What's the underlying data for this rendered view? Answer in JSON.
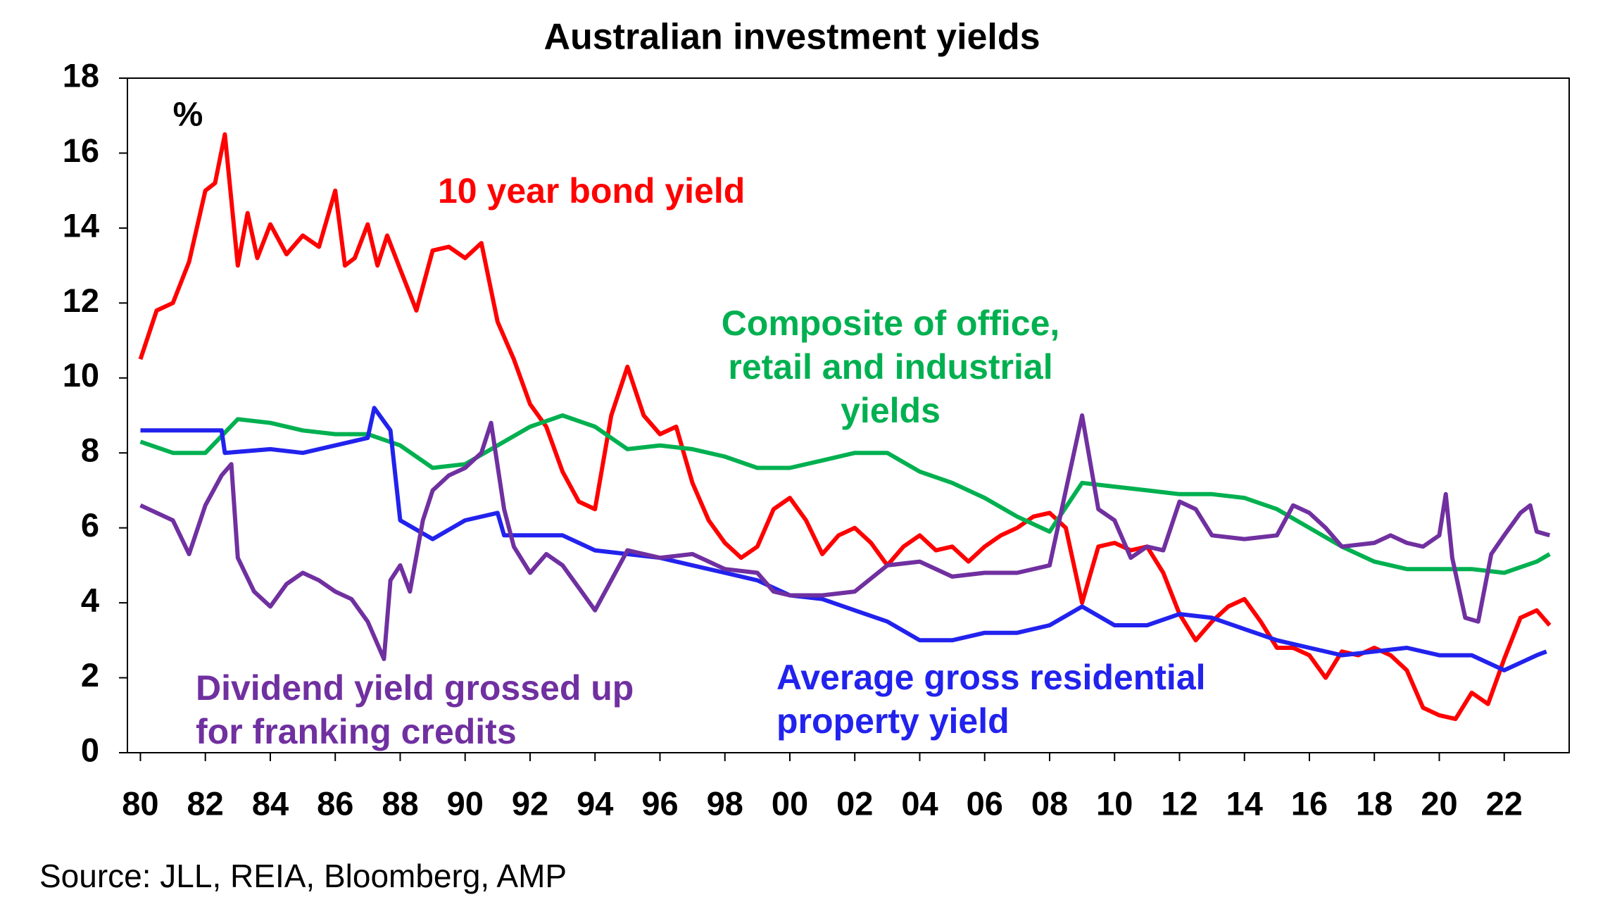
{
  "chart_data": {
    "type": "line",
    "title": "Australian investment yields",
    "y_label": "%",
    "source": "Source: JLL, REIA, Bloomberg, AMP",
    "xlim": [
      1979.6,
      2024
    ],
    "ylim": [
      0,
      18
    ],
    "yticks": [
      0,
      2,
      4,
      6,
      8,
      10,
      12,
      14,
      16,
      18
    ],
    "xticks": [
      {
        "value": 1980,
        "label": "80"
      },
      {
        "value": 1982,
        "label": "82"
      },
      {
        "value": 1984,
        "label": "84"
      },
      {
        "value": 1986,
        "label": "86"
      },
      {
        "value": 1988,
        "label": "88"
      },
      {
        "value": 1990,
        "label": "90"
      },
      {
        "value": 1992,
        "label": "92"
      },
      {
        "value": 1994,
        "label": "94"
      },
      {
        "value": 1996,
        "label": "96"
      },
      {
        "value": 1998,
        "label": "98"
      },
      {
        "value": 2000,
        "label": "00"
      },
      {
        "value": 2002,
        "label": "02"
      },
      {
        "value": 2004,
        "label": "04"
      },
      {
        "value": 2006,
        "label": "06"
      },
      {
        "value": 2008,
        "label": "08"
      },
      {
        "value": 2010,
        "label": "10"
      },
      {
        "value": 2012,
        "label": "12"
      },
      {
        "value": 2014,
        "label": "14"
      },
      {
        "value": 2016,
        "label": "16"
      },
      {
        "value": 2018,
        "label": "18"
      },
      {
        "value": 2020,
        "label": "20"
      },
      {
        "value": 2022,
        "label": "22"
      }
    ],
    "series": [
      {
        "name": "10 year bond yield",
        "color": "#ff0000",
        "x": [
          1980,
          1980.5,
          1981,
          1981.5,
          1982,
          1982.3,
          1982.6,
          1983,
          1983.3,
          1983.6,
          1984,
          1984.5,
          1985,
          1985.5,
          1986,
          1986.3,
          1986.6,
          1987,
          1987.3,
          1987.6,
          1988,
          1988.5,
          1989,
          1989.5,
          1990,
          1990.5,
          1991,
          1991.5,
          1992,
          1992.5,
          1993,
          1993.5,
          1994,
          1994.5,
          1995,
          1995.5,
          1996,
          1996.5,
          1997,
          1997.5,
          1998,
          1998.5,
          1999,
          1999.5,
          2000,
          2000.5,
          2001,
          2001.5,
          2002,
          2002.5,
          2003,
          2003.5,
          2004,
          2004.5,
          2005,
          2005.5,
          2006,
          2006.5,
          2007,
          2007.5,
          2008,
          2008.5,
          2009,
          2009.5,
          2010,
          2010.5,
          2011,
          2011.5,
          2012,
          2012.5,
          2013,
          2013.5,
          2014,
          2014.5,
          2015,
          2015.5,
          2016,
          2016.5,
          2017,
          2017.5,
          2018,
          2018.5,
          2019,
          2019.5,
          2020,
          2020.5,
          2021,
          2021.5,
          2022,
          2022.5,
          2023,
          2023.4
        ],
        "values": [
          10.5,
          11.8,
          12.0,
          13.1,
          15.0,
          15.2,
          16.5,
          13.0,
          14.4,
          13.2,
          14.1,
          13.3,
          13.8,
          13.5,
          15.0,
          13.0,
          13.2,
          14.1,
          13.0,
          13.8,
          12.9,
          11.8,
          13.4,
          13.5,
          13.2,
          13.6,
          11.5,
          10.5,
          9.3,
          8.7,
          7.5,
          6.7,
          6.5,
          9.0,
          10.3,
          9.0,
          8.5,
          8.7,
          7.2,
          6.2,
          5.6,
          5.2,
          5.5,
          6.5,
          6.8,
          6.2,
          5.3,
          5.8,
          6.0,
          5.6,
          5.0,
          5.5,
          5.8,
          5.4,
          5.5,
          5.1,
          5.5,
          5.8,
          6.0,
          6.3,
          6.4,
          6.0,
          4.0,
          5.5,
          5.6,
          5.4,
          5.5,
          4.8,
          3.7,
          3.0,
          3.5,
          3.9,
          4.1,
          3.5,
          2.8,
          2.8,
          2.6,
          2.0,
          2.7,
          2.6,
          2.8,
          2.6,
          2.2,
          1.2,
          1.0,
          0.9,
          1.6,
          1.3,
          2.5,
          3.6,
          3.8,
          3.4
        ]
      },
      {
        "name": "Composite of office, retail and industrial yields",
        "color": "#00b050",
        "x": [
          1980,
          1981,
          1982,
          1983,
          1984,
          1985,
          1986,
          1987,
          1988,
          1989,
          1990,
          1991,
          1992,
          1993,
          1994,
          1995,
          1996,
          1997,
          1998,
          1999,
          2000,
          2001,
          2002,
          2003,
          2004,
          2005,
          2006,
          2007,
          2008,
          2009,
          2010,
          2011,
          2012,
          2013,
          2014,
          2015,
          2016,
          2017,
          2018,
          2019,
          2020,
          2021,
          2022,
          2023,
          2023.4
        ],
        "values": [
          8.3,
          8.0,
          8.0,
          8.9,
          8.8,
          8.6,
          8.5,
          8.5,
          8.2,
          7.6,
          7.7,
          8.2,
          8.7,
          9.0,
          8.7,
          8.1,
          8.2,
          8.1,
          7.9,
          7.6,
          7.6,
          7.8,
          8.0,
          8.0,
          7.5,
          7.2,
          6.8,
          6.3,
          5.9,
          7.2,
          7.1,
          7.0,
          6.9,
          6.9,
          6.8,
          6.5,
          6.0,
          5.5,
          5.1,
          4.9,
          4.9,
          4.9,
          4.8,
          5.1,
          5.3
        ]
      },
      {
        "name": "Average gross residential property yield",
        "color": "#2222ee",
        "x": [
          1980,
          1982.5,
          1982.6,
          1984,
          1985,
          1986,
          1987,
          1987.2,
          1987.7,
          1988,
          1989,
          1990,
          1991,
          1991.2,
          1992,
          1993,
          1994,
          1995,
          1996,
          1997,
          1998,
          1999,
          2000,
          2001,
          2002,
          2003,
          2004,
          2005,
          2006,
          2007,
          2008,
          2009,
          2010,
          2011,
          2012,
          2013,
          2014,
          2015,
          2016,
          2017,
          2018,
          2019,
          2020,
          2021,
          2022,
          2023,
          2023.3
        ],
        "values": [
          8.6,
          8.6,
          8.0,
          8.1,
          8.0,
          8.2,
          8.4,
          9.2,
          8.6,
          6.2,
          5.7,
          6.2,
          6.4,
          5.8,
          5.8,
          5.8,
          5.4,
          5.3,
          5.2,
          5.0,
          4.8,
          4.6,
          4.2,
          4.1,
          3.8,
          3.5,
          3.0,
          3.0,
          3.2,
          3.2,
          3.4,
          3.9,
          3.4,
          3.4,
          3.7,
          3.6,
          3.3,
          3.0,
          2.8,
          2.6,
          2.7,
          2.8,
          2.6,
          2.6,
          2.2,
          2.6,
          2.7
        ]
      },
      {
        "name": "Dividend yield grossed up for franking credits",
        "color": "#7030a0",
        "x": [
          1980,
          1981,
          1981.5,
          1982,
          1982.5,
          1982.8,
          1983,
          1983.5,
          1984,
          1984.5,
          1985,
          1985.5,
          1986,
          1986.5,
          1987,
          1987.5,
          1987.7,
          1988,
          1988.3,
          1988.7,
          1989,
          1989.5,
          1990,
          1990.5,
          1990.8,
          1991.2,
          1991.5,
          1992,
          1992.5,
          1993,
          1993.5,
          1994,
          1994.5,
          1995,
          1996,
          1997,
          1998,
          1999,
          1999.5,
          2000,
          2001,
          2002,
          2003,
          2004,
          2005,
          2006,
          2007,
          2008,
          2008.5,
          2009,
          2009.5,
          2010,
          2010.5,
          2011,
          2011.5,
          2012,
          2012.5,
          2013,
          2014,
          2015,
          2015.5,
          2016,
          2016.5,
          2017,
          2018,
          2018.5,
          2019,
          2019.5,
          2020,
          2020.2,
          2020.4,
          2020.8,
          2021.2,
          2021.6,
          2022,
          2022.5,
          2022.8,
          2023,
          2023.4
        ],
        "values": [
          6.6,
          6.2,
          5.3,
          6.6,
          7.4,
          7.7,
          5.2,
          4.3,
          3.9,
          4.5,
          4.8,
          4.6,
          4.3,
          4.1,
          3.5,
          2.5,
          4.6,
          5.0,
          4.3,
          6.2,
          7.0,
          7.4,
          7.6,
          8.0,
          8.8,
          6.5,
          5.5,
          4.8,
          5.3,
          5.0,
          4.4,
          3.8,
          4.6,
          5.4,
          5.2,
          5.3,
          4.9,
          4.8,
          4.3,
          4.2,
          4.2,
          4.3,
          5.0,
          5.1,
          4.7,
          4.8,
          4.8,
          5.0,
          7.0,
          9.0,
          6.5,
          6.2,
          5.2,
          5.5,
          5.4,
          6.7,
          6.5,
          5.8,
          5.7,
          5.8,
          6.6,
          6.4,
          6.0,
          5.5,
          5.6,
          5.8,
          5.6,
          5.5,
          5.8,
          6.9,
          5.2,
          3.6,
          3.5,
          5.3,
          5.8,
          6.4,
          6.6,
          5.9,
          5.8
        ]
      }
    ]
  }
}
